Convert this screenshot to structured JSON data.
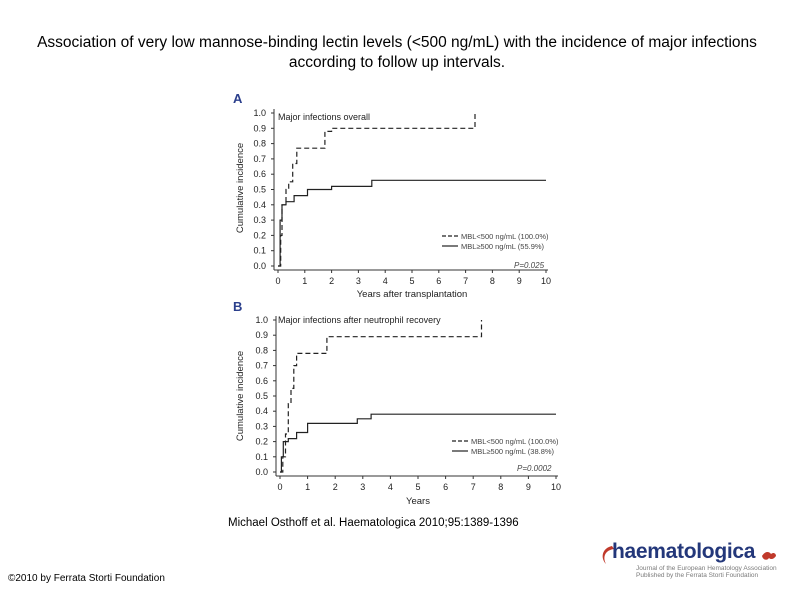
{
  "slide": {
    "title": "Association of very low mannose-binding lectin levels (<500 ng/mL) with the incidence of major infections according to follow up intervals.",
    "citation": "Michael Osthoff et al. Haematologica 2010;95:1389-1396",
    "copyright": "©2010 by Ferrata Storti Foundation"
  },
  "logo": {
    "wordmark": "haematologica",
    "tagline1": "Journal of the European Hematology Association",
    "tagline2": "Published by the Ferrata Storti Foundation"
  },
  "colors": {
    "title_text": "#000000",
    "axis": "#333333",
    "series_line": "#222222",
    "panel_label": "#2b3f8c",
    "logo_wordmark": "#23377a"
  },
  "chart_data": [
    {
      "type": "line",
      "panel_label": "A",
      "title": "Major infections overall",
      "xlabel": "Years after transplantation",
      "ylabel": "Cumulative incidence",
      "xlim": [
        0,
        10
      ],
      "ylim": [
        0,
        1
      ],
      "x_ticks": [
        "0",
        "1",
        "2",
        "3",
        "4",
        "5",
        "6",
        "7",
        "8",
        "9",
        "10"
      ],
      "y_ticks": [
        "0.0",
        "0.1",
        "0.2",
        "0.3",
        "0.4",
        "0.5",
        "0.6",
        "0.7",
        "0.8",
        "0.9",
        "1.0"
      ],
      "annotation": "P=0.025",
      "legend_position": "bottom-right",
      "series": [
        {
          "name": "MBL<500 ng/mL (100.0%)",
          "style": "dashed",
          "step": true,
          "points": [
            [
              0,
              0
            ],
            [
              0.1,
              0.2
            ],
            [
              0.15,
              0.4
            ],
            [
              0.3,
              0.5
            ],
            [
              0.4,
              0.55
            ],
            [
              0.55,
              0.67
            ],
            [
              0.7,
              0.77
            ],
            [
              1.7,
              0.77
            ],
            [
              1.75,
              0.88
            ],
            [
              2.0,
              0.9
            ],
            [
              7.3,
              0.9
            ],
            [
              7.35,
              1.0
            ]
          ]
        },
        {
          "name": "MBL≥500 ng/mL (55.9%)",
          "style": "solid",
          "step": true,
          "points": [
            [
              0,
              0
            ],
            [
              0.08,
              0.3
            ],
            [
              0.15,
              0.4
            ],
            [
              0.3,
              0.42
            ],
            [
              0.6,
              0.46
            ],
            [
              1.1,
              0.5
            ],
            [
              2.0,
              0.52
            ],
            [
              3.5,
              0.56
            ],
            [
              10,
              0.56
            ]
          ]
        }
      ]
    },
    {
      "type": "line",
      "panel_label": "B",
      "title": "Major infections after neutrophil recovery",
      "xlabel": "Years",
      "ylabel": "Cumulative incidence",
      "xlim": [
        0,
        10
      ],
      "ylim": [
        0,
        1
      ],
      "x_ticks": [
        "0",
        "1",
        "2",
        "3",
        "4",
        "5",
        "6",
        "7",
        "8",
        "9",
        "10"
      ],
      "y_ticks": [
        "0.0",
        "0.1",
        "0.2",
        "0.3",
        "0.4",
        "0.5",
        "0.6",
        "0.7",
        "0.8",
        "0.9",
        "1.0"
      ],
      "annotation": "P=0.0002",
      "legend_position": "bottom-right",
      "series": [
        {
          "name": "MBL<500 ng/mL (100.0%)",
          "style": "dashed",
          "step": true,
          "points": [
            [
              0,
              0
            ],
            [
              0.1,
              0.1
            ],
            [
              0.2,
              0.25
            ],
            [
              0.3,
              0.45
            ],
            [
              0.4,
              0.55
            ],
            [
              0.5,
              0.7
            ],
            [
              0.6,
              0.78
            ],
            [
              1.6,
              0.78
            ],
            [
              1.7,
              0.89
            ],
            [
              7.2,
              0.89
            ],
            [
              7.3,
              1.0
            ]
          ]
        },
        {
          "name": "MBL≥500 ng/mL (38.8%)",
          "style": "solid",
          "step": true,
          "points": [
            [
              0,
              0
            ],
            [
              0.05,
              0.1
            ],
            [
              0.12,
              0.2
            ],
            [
              0.3,
              0.22
            ],
            [
              0.6,
              0.26
            ],
            [
              1.0,
              0.32
            ],
            [
              2.8,
              0.35
            ],
            [
              3.3,
              0.38
            ],
            [
              10,
              0.38
            ]
          ]
        }
      ]
    }
  ]
}
